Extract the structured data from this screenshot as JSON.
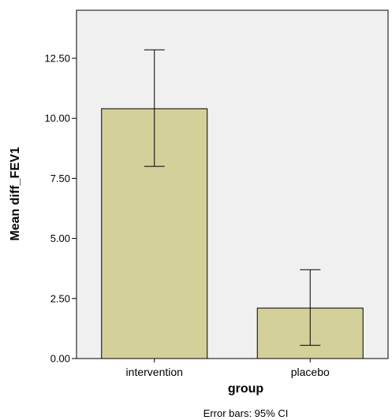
{
  "chart_data": {
    "type": "bar",
    "categories": [
      "intervention",
      "placebo"
    ],
    "values": [
      10.4,
      2.1
    ],
    "error_bars": {
      "type": "95% CI",
      "lower": [
        8.0,
        0.55
      ],
      "upper": [
        12.85,
        3.7
      ]
    },
    "xlabel": "group",
    "ylabel": "Mean diff_FEV1",
    "ylim": [
      0,
      14.5
    ],
    "yticks": [
      0,
      2.5,
      5,
      7.5,
      10,
      12.5
    ],
    "ytick_labels": [
      "0.00",
      "2.50",
      "5.00",
      "7.50",
      "10.00",
      "12.50"
    ],
    "grid": false,
    "footnote": "Error bars: 95% CI",
    "colors": {
      "bar_fill": "#d4d09a",
      "bar_stroke": "#000000",
      "plot_background": "#f0f0f0"
    }
  }
}
